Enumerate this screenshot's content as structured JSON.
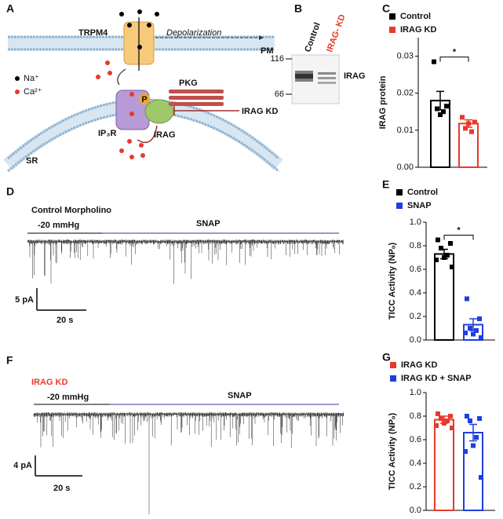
{
  "diagram": {
    "label": "A",
    "trpm4": "TRPM4",
    "depolarization": "Depolarization",
    "pm": "PM",
    "na": "Na⁺",
    "ca": "Ca²⁺",
    "pkg": "PKG",
    "p": "P",
    "irag_kd": "IRAG KD",
    "ip3r": "IP₃R",
    "irag": "IRAG",
    "sr": "SR"
  },
  "blot": {
    "label": "B",
    "markers": [
      116,
      66
    ],
    "lanes": [
      "Control",
      "IRAG- KD"
    ],
    "band": "IRAG"
  },
  "traces": [
    {
      "label": "D",
      "title": "Control Morpholino",
      "pressure": "-20 mmHg",
      "treatment": "SNAP",
      "scale_y": "5 pA",
      "scale_x": "20 s"
    },
    {
      "label": "F",
      "title": "IRAG KD",
      "pressure": "-20 mmHg",
      "treatment": "SNAP",
      "scale_y": "4 pA",
      "scale_x": "20 s"
    }
  ],
  "chart_data": [
    {
      "type": "bar",
      "label": "C",
      "ylabel": "IRAG protein",
      "ylim": [
        0,
        0.035
      ],
      "yticks": [
        {
          "value": 0,
          "label": "0.00"
        },
        0.01,
        0.02,
        0.03
      ],
      "significance": "*",
      "series": [
        {
          "name": "Control",
          "color": "#000000",
          "values": [
            0.018
          ],
          "errors": [
            0.0025
          ],
          "points": [
            0.0285,
            0.0165,
            0.0158,
            0.015,
            0.0142
          ]
        },
        {
          "name": "IRAG KD",
          "color": "#e8392a",
          "values": [
            0.0118
          ],
          "errors": [
            0.001
          ],
          "points": [
            0.0135,
            0.0122,
            0.0105,
            0.0096,
            0.0118
          ]
        }
      ]
    },
    {
      "type": "bar",
      "label": "E",
      "ylabel": "TICC Activity (NPₒ)",
      "ylim": [
        0,
        1
      ],
      "yticks": [
        {
          "value": 0,
          "label": "0.0"
        },
        0.2,
        0.4,
        0.6,
        0.8,
        {
          "value": 1,
          "label": "1.0"
        }
      ],
      "significance": "*",
      "series": [
        {
          "name": "Control",
          "color": "#000000",
          "values": [
            0.73
          ],
          "errors": [
            0.04
          ],
          "points": [
            0.85,
            0.82,
            0.78,
            0.72,
            0.7,
            0.68,
            0.62
          ]
        },
        {
          "name": "SNAP",
          "color": "#1f3fe0",
          "values": [
            0.13
          ],
          "errors": [
            0.05
          ],
          "points": [
            0.35,
            0.18,
            0.1,
            0.08,
            0.05,
            0.06,
            0.02
          ]
        }
      ]
    },
    {
      "type": "bar",
      "label": "G",
      "ylabel": "TICC Activity (NPₒ)",
      "ylim": [
        0,
        1
      ],
      "yticks": [
        {
          "value": 0,
          "label": "0.0"
        },
        0.2,
        0.4,
        0.6,
        0.8,
        {
          "value": 1,
          "label": "1.0"
        }
      ],
      "series": [
        {
          "name": "IRAG KD",
          "color": "#e8392a",
          "values": [
            0.77
          ],
          "errors": [
            0.03
          ],
          "points": [
            0.82,
            0.8,
            0.78,
            0.76,
            0.74,
            0.72,
            0.7
          ]
        },
        {
          "name": "IRAG KD + SNAP",
          "color": "#1f3fe0",
          "values": [
            0.66
          ],
          "errors": [
            0.07
          ],
          "points": [
            0.8,
            0.78,
            0.76,
            0.62,
            0.55,
            0.5,
            0.28
          ]
        }
      ]
    }
  ]
}
